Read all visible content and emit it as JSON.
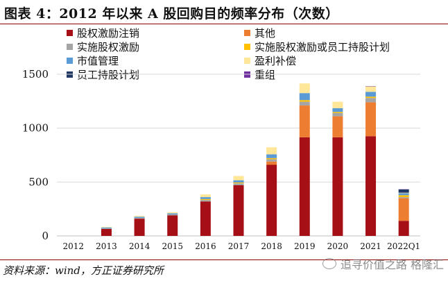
{
  "header": {
    "title": "图表 4：2012 年以来 A 股回购目的频率分布（次数）"
  },
  "footer": {
    "source": "资料来源：wind，方正证券研究所",
    "watermark": "追寻价值之路 格隆汇"
  },
  "colors": {
    "rule": "#8b0000",
    "gridline": "#d9d9d9"
  },
  "chart_data": {
    "type": "bar",
    "stacked": true,
    "categories": [
      "2012",
      "2013",
      "2014",
      "2015",
      "2016",
      "2017",
      "2018",
      "2019",
      "2020",
      "2021",
      "2022Q1"
    ],
    "ylim": [
      0,
      1500
    ],
    "yticks": [
      0,
      500,
      1000,
      1500
    ],
    "legend_position": "top",
    "series": [
      {
        "name": "股权激励注销",
        "color": "#a50f15",
        "values": [
          0,
          65,
          160,
          190,
          320,
          470,
          660,
          915,
          915,
          925,
          140
        ]
      },
      {
        "name": "其他",
        "color": "#ed7d31",
        "values": [
          0,
          0,
          0,
          0,
          0,
          0,
          30,
          295,
          195,
          315,
          210
        ]
      },
      {
        "name": "实施股权激励",
        "color": "#a5a5a5",
        "values": [
          0,
          5,
          8,
          10,
          14,
          18,
          22,
          35,
          30,
          40,
          10
        ]
      },
      {
        "name": "实施股权激励或员工持股计划",
        "color": "#ffc000",
        "values": [
          0,
          0,
          0,
          0,
          8,
          8,
          10,
          15,
          10,
          12,
          18
        ]
      },
      {
        "name": "市值管理",
        "color": "#5b9bd5",
        "values": [
          0,
          8,
          10,
          10,
          18,
          20,
          35,
          65,
          35,
          45,
          18
        ]
      },
      {
        "name": "盈利补偿",
        "color": "#ffe699",
        "values": [
          0,
          5,
          8,
          10,
          25,
          40,
          65,
          90,
          60,
          50,
          5
        ]
      },
      {
        "name": "员工持股计划",
        "color": "#1f3864",
        "values": [
          0,
          0,
          0,
          0,
          0,
          0,
          0,
          0,
          0,
          0,
          30
        ]
      },
      {
        "name": "重组",
        "color": "#7030a0",
        "values": [
          0,
          0,
          0,
          0,
          0,
          0,
          0,
          0,
          0,
          3,
          2
        ]
      }
    ]
  }
}
